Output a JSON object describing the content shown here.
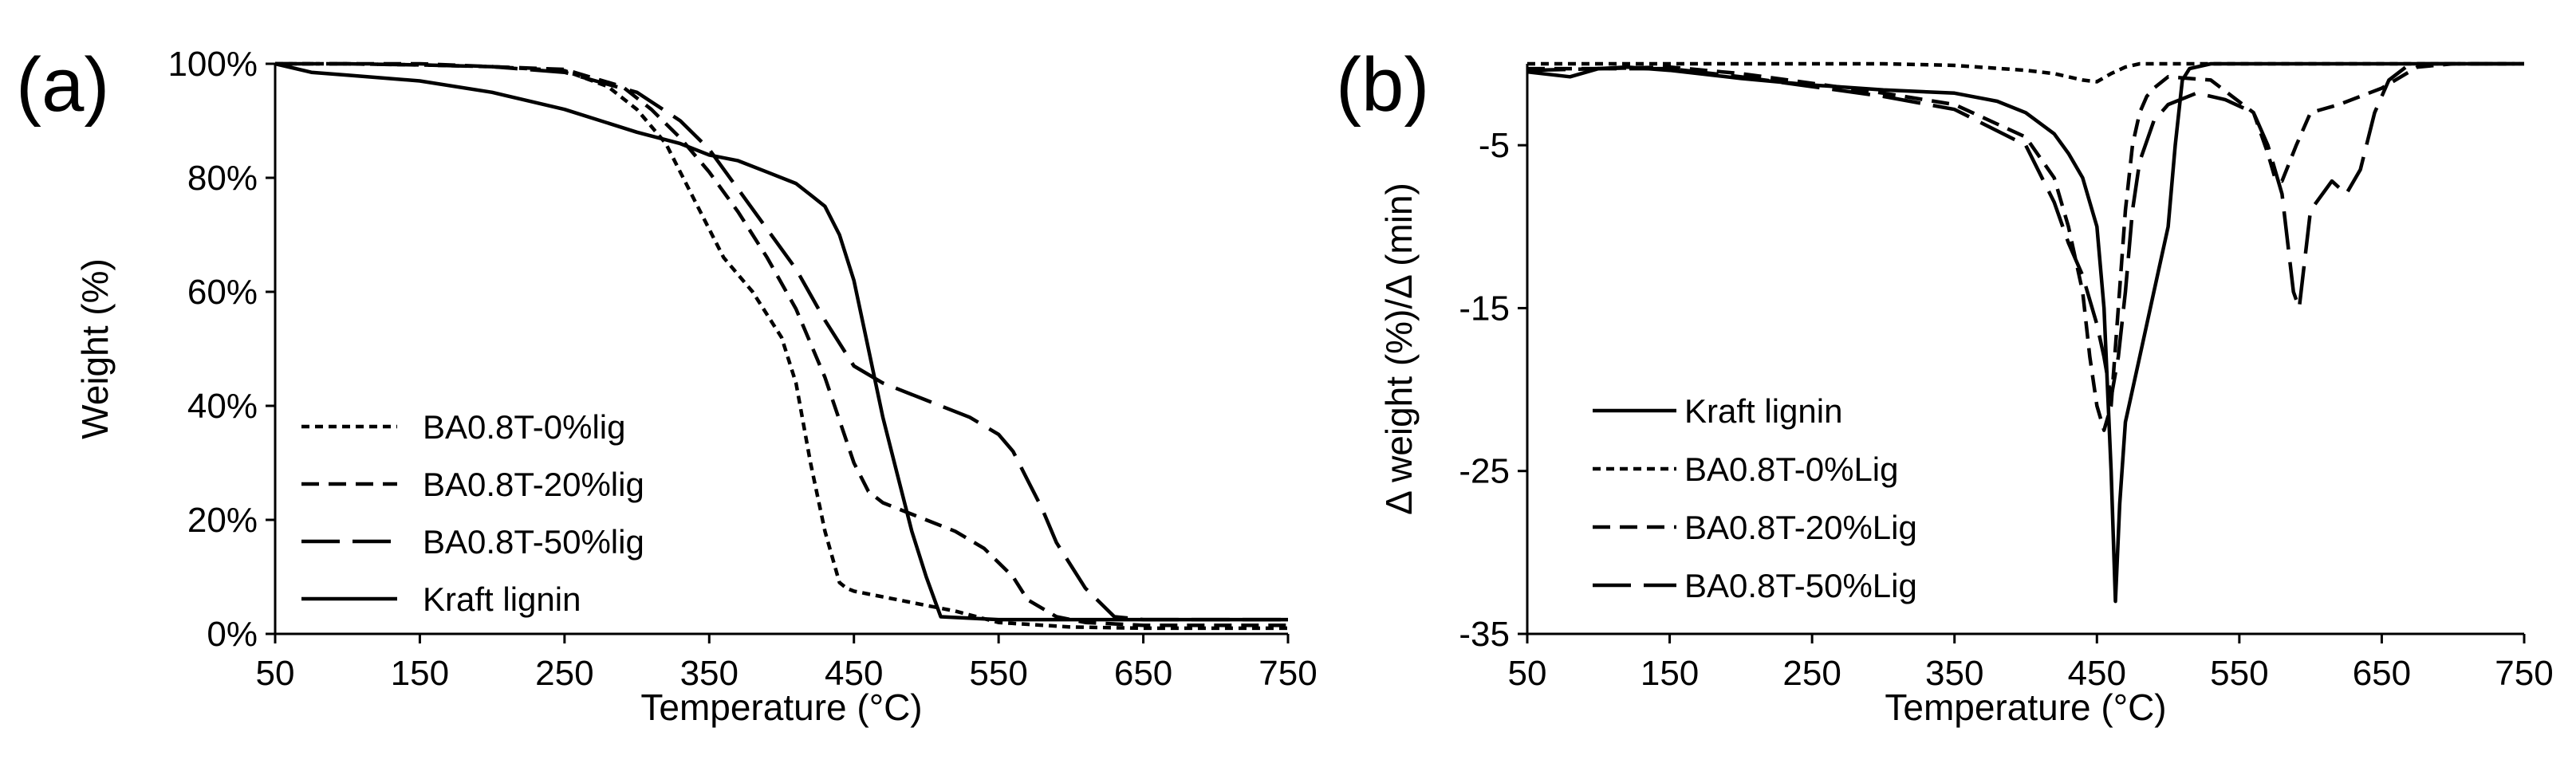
{
  "panels": [
    {
      "id": "a",
      "letter": "(a)",
      "chart_data": {
        "type": "line",
        "title": "",
        "xlabel": "Temperature (°C)",
        "ylabel": "Weight (%)",
        "xlim": [
          50,
          750
        ],
        "ylim": [
          0,
          100
        ],
        "xticks": [
          50,
          150,
          250,
          350,
          450,
          550,
          650,
          750
        ],
        "yticks": [
          0,
          20,
          40,
          60,
          80,
          100
        ],
        "ytick_suffix": "%",
        "legend": [
          "BA0.8T-0%lig",
          "BA0.8T-20%lig",
          "BA0.8T-50%lig",
          "Kraft lignin"
        ],
        "series": [
          {
            "name": "BA0.8T-0%lig",
            "dash": "short",
            "x": [
              50,
              100,
              150,
              200,
              250,
              280,
              300,
              320,
              340,
              360,
              380,
              400,
              410,
              420,
              430,
              440,
              445,
              450,
              460,
              480,
              500,
              520,
              550,
              600,
              650,
              700,
              750
            ],
            "y": [
              100,
              100,
              99.8,
              99.5,
              98.8,
              96,
              92,
              86,
              76,
              66,
              60,
              52,
              44,
              30,
              18,
              9,
              8,
              7.5,
              7,
              6,
              5,
              4,
              2,
              1.2,
              1,
              1,
              1
            ]
          },
          {
            "name": "BA0.8T-20%lig",
            "dash": "medium",
            "x": [
              50,
              100,
              150,
              200,
              250,
              290,
              310,
              330,
              350,
              370,
              390,
              410,
              430,
              450,
              460,
              470,
              490,
              520,
              540,
              560,
              570,
              590,
              610,
              650,
              700,
              750
            ],
            "y": [
              100,
              100,
              100,
              99.5,
              99,
              96,
              92,
              87,
              81,
              74,
              66,
              57,
              45,
              30,
              25,
              23,
              21,
              18,
              15,
              10,
              6,
              3,
              2,
              1.5,
              1.5,
              1.5
            ]
          },
          {
            "name": "BA0.8T-50%lig",
            "dash": "long",
            "x": [
              50,
              100,
              150,
              200,
              250,
              300,
              330,
              350,
              370,
              390,
              410,
              430,
              450,
              470,
              500,
              530,
              550,
              560,
              570,
              580,
              590,
              610,
              630,
              650,
              700,
              750
            ],
            "y": [
              100,
              100,
              99.8,
              99.5,
              98.5,
              95,
              90,
              85,
              78,
              71,
              64,
              55,
              47,
              44,
              41,
              38,
              35,
              32,
              27,
              22,
              16,
              8,
              3,
              2.5,
              2.5,
              2.5
            ]
          },
          {
            "name": "Kraft lignin",
            "dash": "solid",
            "x": [
              50,
              75,
              100,
              150,
              200,
              250,
              300,
              330,
              350,
              370,
              390,
              410,
              420,
              430,
              440,
              450,
              460,
              470,
              480,
              490,
              500,
              510,
              550,
              600,
              650,
              700,
              750
            ],
            "y": [
              100,
              98.5,
              98,
              97,
              95,
              92,
              88,
              86,
              84,
              83,
              81,
              79,
              77,
              75,
              70,
              62,
              50,
              38,
              28,
              18,
              10,
              3,
              2.5,
              2.5,
              2.5,
              2.5,
              2.5
            ]
          }
        ]
      }
    },
    {
      "id": "b",
      "letter": "(b)",
      "chart_data": {
        "type": "line",
        "title": "",
        "xlabel": "Temperature (°C)",
        "ylabel": "Δ weight (%)/Δ (min)",
        "xlim": [
          50,
          750
        ],
        "ylim": [
          -35,
          0
        ],
        "xticks": [
          50,
          150,
          250,
          350,
          450,
          550,
          650,
          750
        ],
        "yticks": [
          -5,
          -15,
          -25,
          -35
        ],
        "ytick_suffix": "",
        "legend": [
          "Kraft lignin",
          "BA0.8T-0%Lig",
          "BA0.8T-20%Lig",
          "BA0.8T-50%Lig"
        ],
        "series": [
          {
            "name": "Kraft lignin",
            "dash": "solid",
            "x": [
              50,
              80,
              100,
              120,
              150,
              200,
              250,
              300,
              350,
              380,
              400,
              420,
              430,
              440,
              450,
              455,
              460,
              463,
              466,
              470,
              480,
              490,
              500,
              505,
              510,
              515,
              530,
              560,
              600,
              650,
              700,
              750
            ],
            "y": [
              -0.5,
              -0.8,
              -0.3,
              -0.2,
              -0.4,
              -0.9,
              -1.3,
              -1.6,
              -1.8,
              -2.3,
              -3,
              -4.3,
              -5.5,
              -7,
              -10,
              -15,
              -25,
              -33,
              -27,
              -22,
              -18,
              -14,
              -10,
              -5,
              -1,
              -0.3,
              0,
              0,
              0,
              0,
              0,
              0
            ]
          },
          {
            "name": "BA0.8T-0%Lig",
            "dash": "short",
            "x": [
              50,
              100,
              150,
              200,
              250,
              300,
              350,
              400,
              420,
              440,
              450,
              460,
              470,
              480,
              500,
              550,
              600,
              650,
              700,
              750
            ],
            "y": [
              0,
              0,
              0,
              0,
              0,
              0,
              -0.1,
              -0.4,
              -0.6,
              -1,
              -1.1,
              -0.6,
              -0.2,
              0,
              0,
              0,
              0,
              0,
              0,
              0
            ]
          },
          {
            "name": "BA0.8T-20%Lig",
            "dash": "medium",
            "x": [
              50,
              100,
              150,
              200,
              250,
              300,
              350,
              400,
              420,
              430,
              440,
              445,
              450,
              455,
              460,
              465,
              470,
              475,
              480,
              485,
              490,
              500,
              530,
              560,
              570,
              575,
              580,
              590,
              600,
              620,
              650,
              675,
              700,
              750
            ],
            "y": [
              -0.3,
              -0.3,
              -0.2,
              -0.6,
              -1.2,
              -1.8,
              -2.5,
              -4.5,
              -7,
              -10,
              -14,
              -18,
              -21,
              -22.5,
              -21,
              -15,
              -9,
              -5,
              -3,
              -2,
              -1.5,
              -0.8,
              -1,
              -3,
              -5.5,
              -7,
              -7.2,
              -5,
              -3,
              -2.5,
              -1.5,
              -0.2,
              0,
              0
            ]
          },
          {
            "name": "BA0.8T-50%Lig",
            "dash": "long",
            "x": [
              50,
              100,
              150,
              200,
              250,
              300,
              350,
              400,
              420,
              430,
              440,
              450,
              455,
              460,
              465,
              470,
              475,
              480,
              490,
              500,
              520,
              540,
              560,
              570,
              580,
              588,
              592,
              600,
              615,
              625,
              635,
              645,
              655,
              670,
              700,
              750
            ],
            "y": [
              -0.4,
              -0.3,
              -0.3,
              -0.8,
              -1.4,
              -2,
              -2.8,
              -5,
              -8.5,
              -11,
              -13,
              -16,
              -18,
              -20.5,
              -18,
              -14,
              -9,
              -6,
              -3.5,
              -2.5,
              -1.8,
              -2.2,
              -3,
              -5,
              -8,
              -14,
              -15,
              -9,
              -7.2,
              -8,
              -6.5,
              -3,
              -1,
              0,
              0,
              0
            ]
          }
        ]
      }
    }
  ]
}
